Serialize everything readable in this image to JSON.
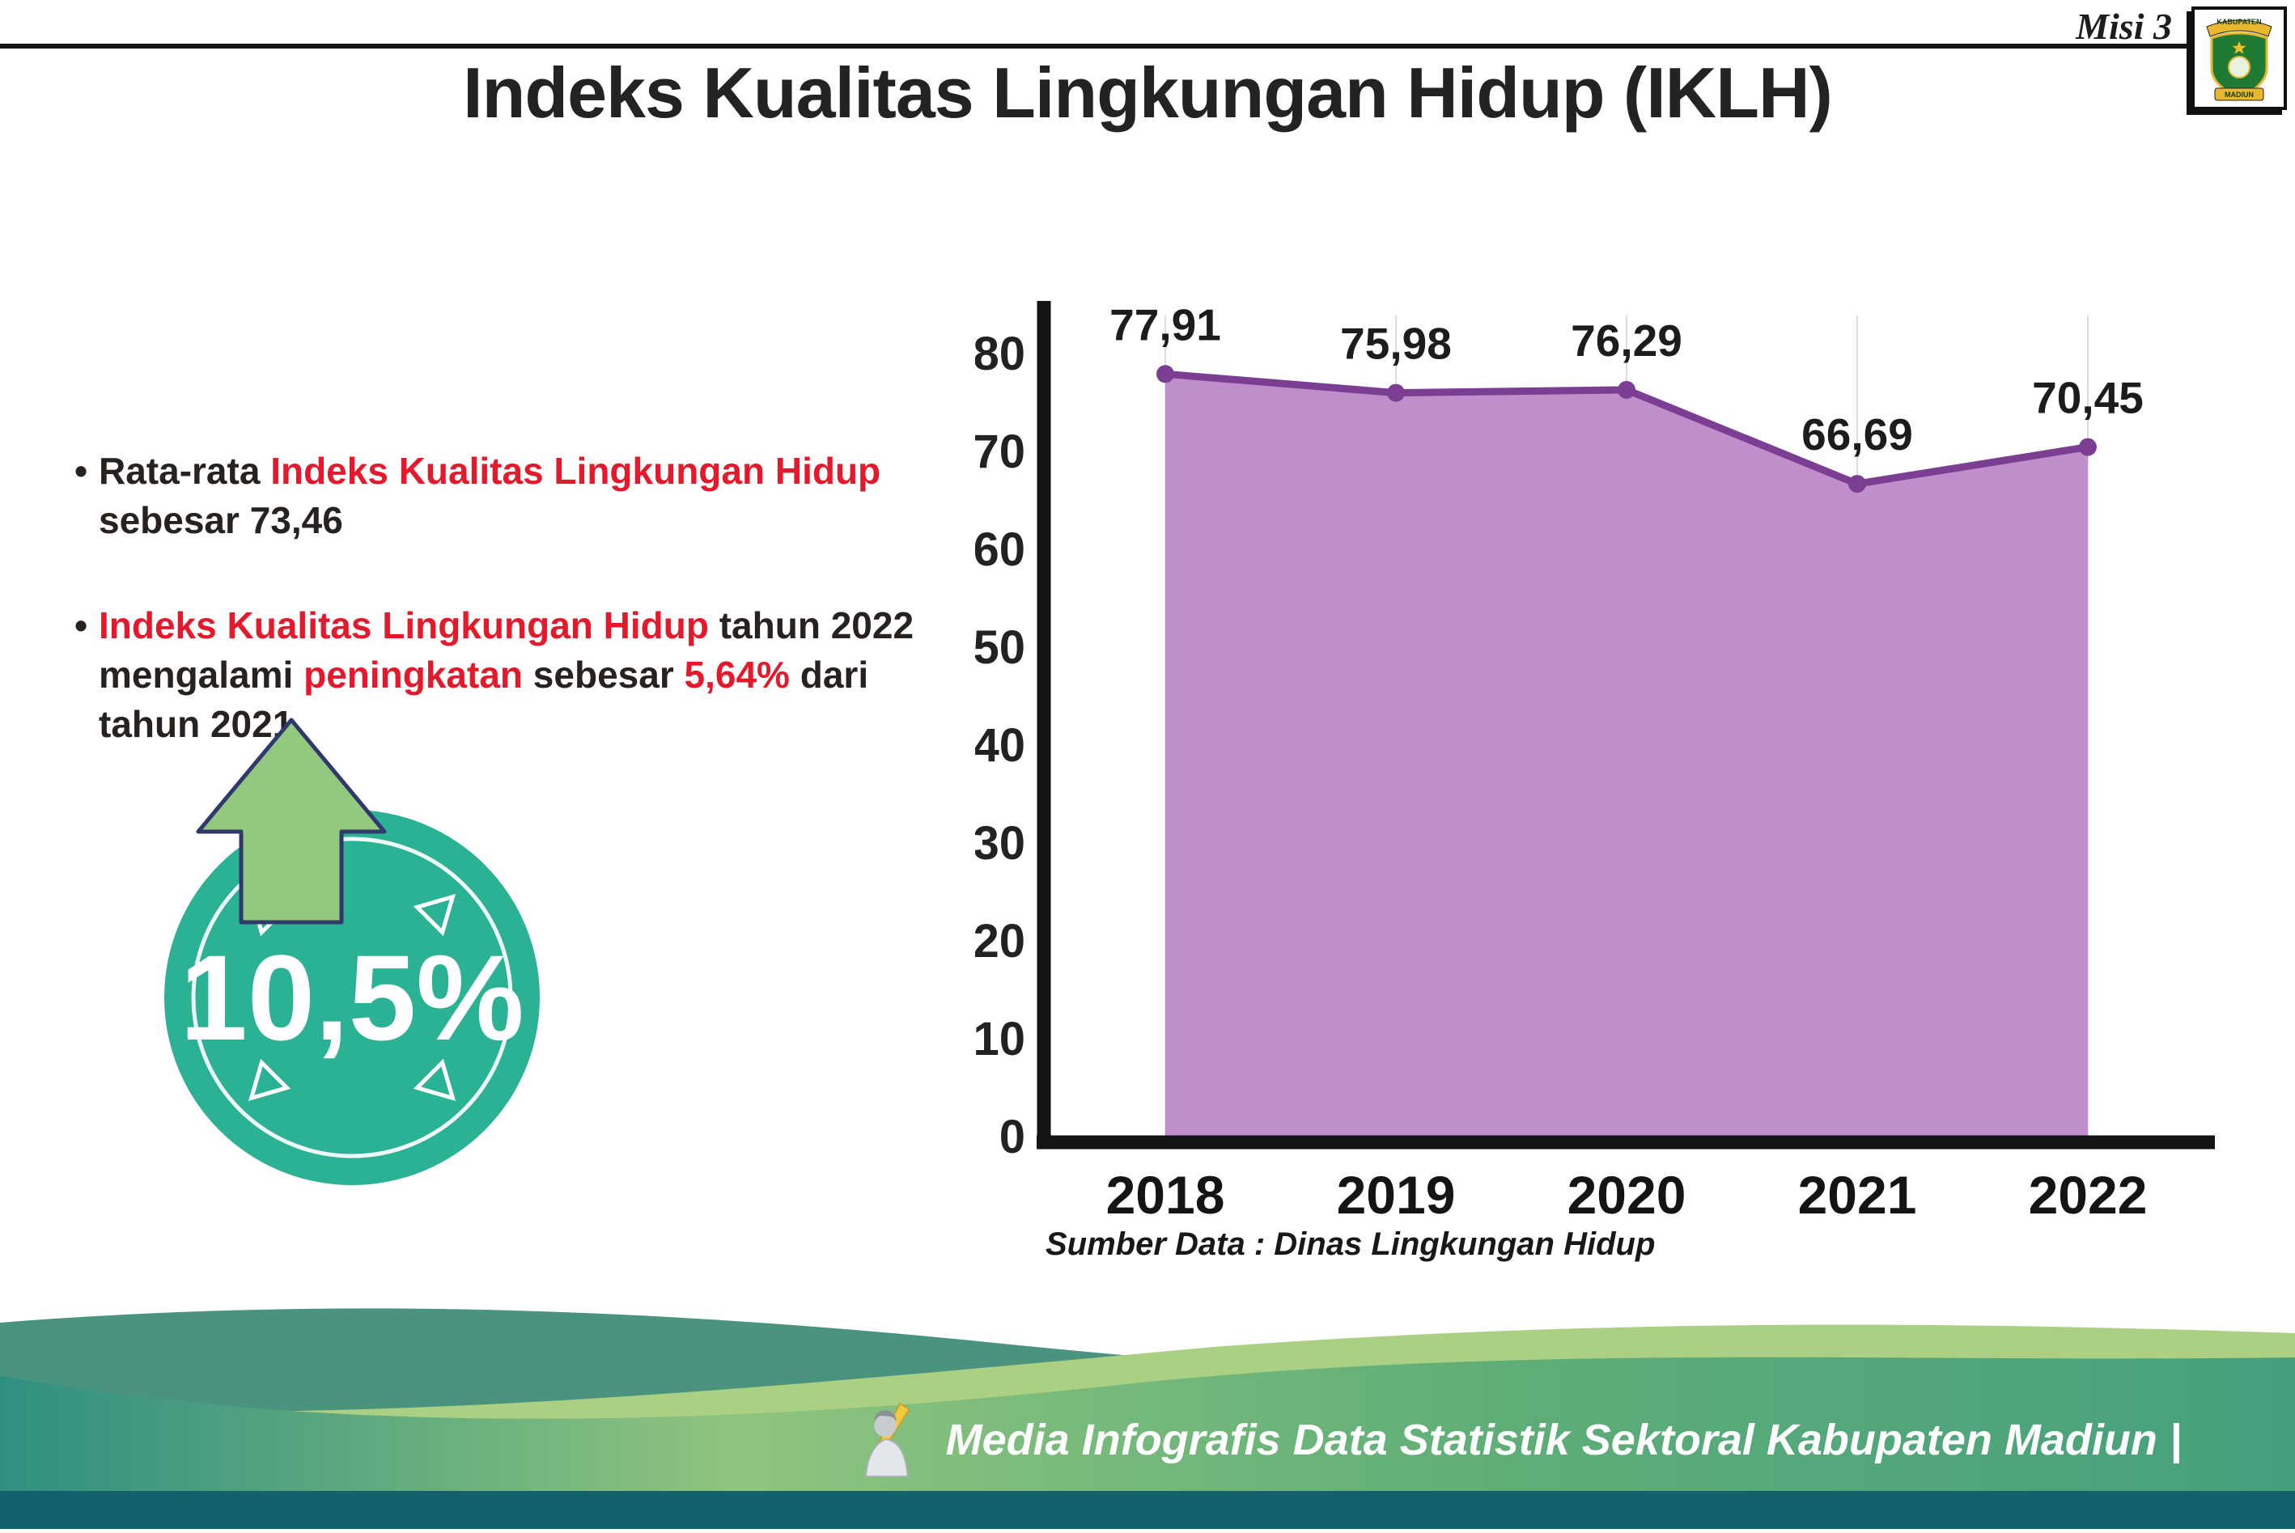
{
  "header": {
    "misi_label": "Misi 3",
    "title": "Indeks Kualitas Lingkungan Hidup (IKLH)"
  },
  "logo": {
    "banner_top": "KABUPATEN",
    "banner_bottom": "MADIUN"
  },
  "bullets": {
    "marker": "•",
    "first": {
      "seg1": "Rata-rata ",
      "seg2": "Indeks Kualitas Lingkungan Hidup",
      "seg3": " sebesar 73,46"
    },
    "second": {
      "seg1": "Indeks Kualitas Lingkungan Hidup",
      "seg2": " tahun 2022 mengalami ",
      "seg3": "peningkatan",
      "seg4": " sebesar ",
      "seg5": "5,64%",
      "seg6": " dari tahun 2021"
    }
  },
  "badge": {
    "value": "10,5%",
    "direction": "up"
  },
  "chart_data": {
    "type": "area",
    "categories": [
      "2018",
      "2019",
      "2020",
      "2021",
      "2022"
    ],
    "values": [
      77.91,
      75.98,
      76.29,
      66.69,
      70.45
    ],
    "value_labels": [
      "77,91",
      "75,98",
      "76,29",
      "66,69",
      "70,45"
    ],
    "title": "",
    "xlabel": "",
    "ylabel": "",
    "ylim": [
      0,
      80
    ],
    "yticks": [
      0,
      10,
      20,
      30,
      40,
      50,
      60,
      70,
      80
    ],
    "grid": "vertical-light",
    "legend": "none",
    "area_color": "#c08ecb",
    "line_color": "#7b3e92"
  },
  "source_note": "Sumber Data : Dinas Lingkungan Hidup",
  "footer": {
    "credit": "Media Infografis Data Statistik Sektoral Kabupaten Madiun |"
  },
  "colors": {
    "accent_red": "#e4192b",
    "badge_teal": "#2bb295",
    "arrow_green": "#92c97e",
    "footer_strip": "#13616c"
  }
}
